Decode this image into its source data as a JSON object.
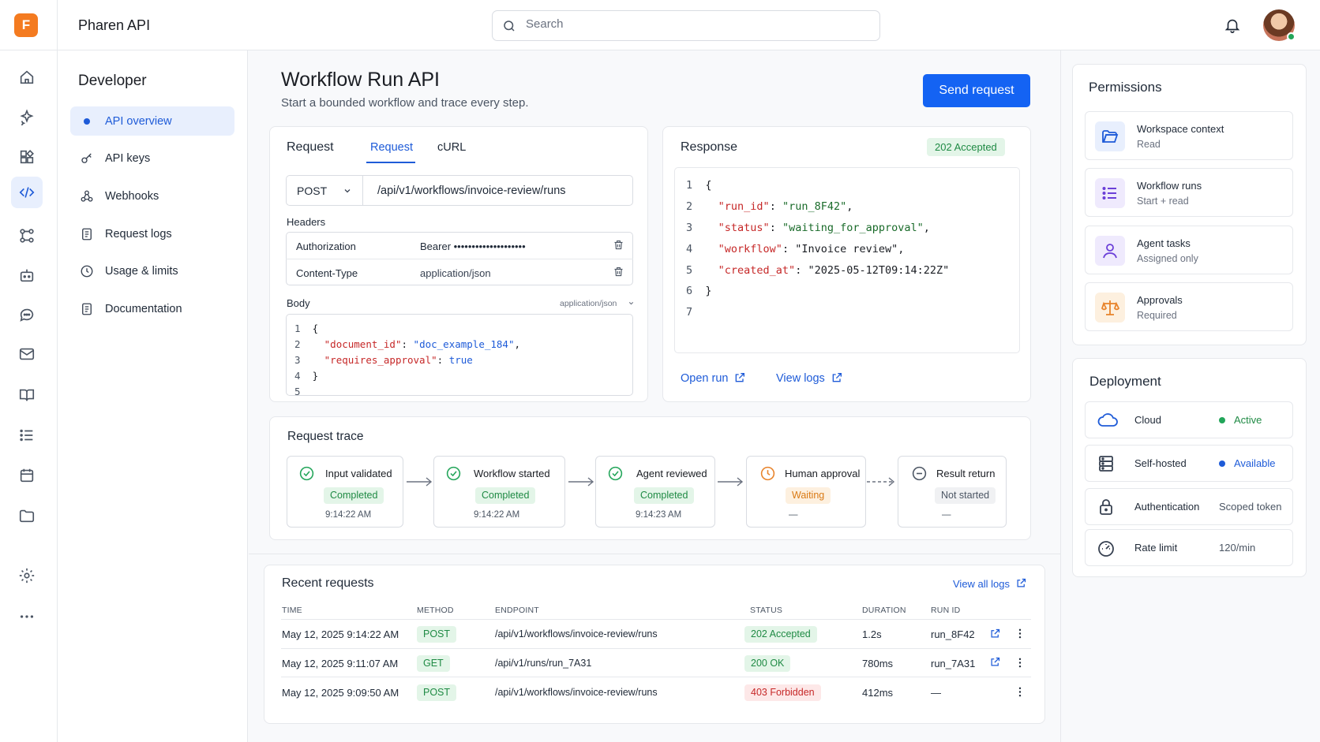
{
  "app": {
    "logo_letter": "F",
    "name": "Pharen API"
  },
  "search": {
    "placeholder": "Search"
  },
  "rail": [
    "home-icon",
    "sparkles-icon",
    "apps-icon",
    "code-icon",
    "connections-icon",
    "robot-icon",
    "chat-icon",
    "mail-icon",
    "book-icon",
    "list-icon",
    "calendar-icon",
    "folder-icon",
    "settings-icon",
    "more-icon"
  ],
  "devnav": {
    "title": "Developer",
    "items": [
      {
        "label": "API overview",
        "icon": "dot"
      },
      {
        "label": "API keys",
        "icon": "key-icon"
      },
      {
        "label": "Webhooks",
        "icon": "webhook-icon"
      },
      {
        "label": "Request logs",
        "icon": "document-icon"
      },
      {
        "label": "Usage & limits",
        "icon": "clock-icon"
      },
      {
        "label": "Documentation",
        "icon": "document-icon"
      }
    ]
  },
  "page": {
    "title": "Workflow Run API",
    "subtitle": "Start a bounded workflow and trace every step.",
    "send_label": "Send request"
  },
  "request": {
    "title": "Request",
    "tabs": [
      "Request",
      "cURL"
    ],
    "method": "POST",
    "url": "/api/v1/workflows/invoice-review/runs",
    "headers_label": "Headers",
    "headers": [
      {
        "name": "Authorization",
        "value": "Bearer ••••••••••••••••••••"
      },
      {
        "name": "Content-Type",
        "value": "application/json"
      }
    ],
    "body_label": "Body",
    "body_type": "application/json",
    "body_lines": [
      {
        "n": "1",
        "text": "{"
      },
      {
        "n": "2",
        "key": "\"document_id\"",
        "sep": ": ",
        "val": "\"doc_example_184\"",
        "end": ","
      },
      {
        "n": "3",
        "key": "\"requires_approval\"",
        "sep": ": ",
        "val": "true",
        "end": ""
      },
      {
        "n": "4",
        "text": "}"
      },
      {
        "n": "5",
        "text": ""
      }
    ]
  },
  "response": {
    "title": "Response",
    "status": "202 Accepted",
    "lines": [
      {
        "n": "1",
        "text": "{"
      },
      {
        "n": "2",
        "key": "\"run_id\"",
        "val": "\"run_8F42\"",
        "end": ","
      },
      {
        "n": "3",
        "key": "\"status\"",
        "val": "\"waiting_for_approval\"",
        "end": ","
      },
      {
        "n": "4",
        "key": "\"workflow\"",
        "val": "\"Invoice review\"",
        "end": ","
      },
      {
        "n": "5",
        "key": "\"created_at\"",
        "val": "\"2025-05-12T09:14:22Z\"",
        "end": ""
      },
      {
        "n": "6",
        "text": "}"
      },
      {
        "n": "7",
        "text": ""
      }
    ],
    "open_run": "Open run",
    "view_logs": "View logs"
  },
  "trace": {
    "title": "Request trace",
    "steps": [
      {
        "title": "Input validated",
        "status": "Completed",
        "time": "9:14:22 AM"
      },
      {
        "title": "Workflow started",
        "status": "Completed",
        "time": "9:14:22 AM"
      },
      {
        "title": "Agent reviewed",
        "status": "Completed",
        "time": "9:14:23 AM"
      },
      {
        "title": "Human approval",
        "status": "Waiting",
        "time": "—"
      },
      {
        "title": "Result return",
        "status": "Not started",
        "time": "—"
      }
    ]
  },
  "recent": {
    "title": "Recent requests",
    "view_all": "View all logs",
    "columns": [
      "TIME",
      "METHOD",
      "ENDPOINT",
      "STATUS",
      "DURATION",
      "RUN ID"
    ],
    "rows": [
      {
        "time": "May 12, 2025 9:14:22 AM",
        "method": "POST",
        "endpoint": "/api/v1/workflows/invoice-review/runs",
        "status": "202 Accepted",
        "duration": "1.2s",
        "run_id": "run_8F42"
      },
      {
        "time": "May 12, 2025 9:11:07 AM",
        "method": "GET",
        "endpoint": "/api/v1/runs/run_7A31",
        "status": "200 OK",
        "duration": "780ms",
        "run_id": "run_7A31"
      },
      {
        "time": "May 12, 2025 9:09:50 AM",
        "method": "POST",
        "endpoint": "/api/v1/workflows/invoice-review/runs",
        "status": "403 Forbidden",
        "duration": "412ms",
        "run_id": "—"
      }
    ]
  },
  "permissions": {
    "title": "Permissions",
    "items": [
      {
        "title": "Workspace context",
        "sub": "Read"
      },
      {
        "title": "Workflow runs",
        "sub": "Start + read"
      },
      {
        "title": "Agent tasks",
        "sub": "Assigned only"
      },
      {
        "title": "Approvals",
        "sub": "Required"
      }
    ]
  },
  "deployment": {
    "title": "Deployment",
    "items": [
      {
        "name": "Cloud",
        "value": "Active"
      },
      {
        "name": "Self-hosted",
        "value": "Available"
      },
      {
        "name": "Authentication",
        "value": "Scoped token"
      },
      {
        "name": "Rate limit",
        "value": "120/min"
      }
    ]
  },
  "colors": {
    "accent": "#1463f3",
    "success": "#1f8a44",
    "warning": "#d97a15",
    "danger": "#c62828",
    "brand": "#f47b20"
  }
}
